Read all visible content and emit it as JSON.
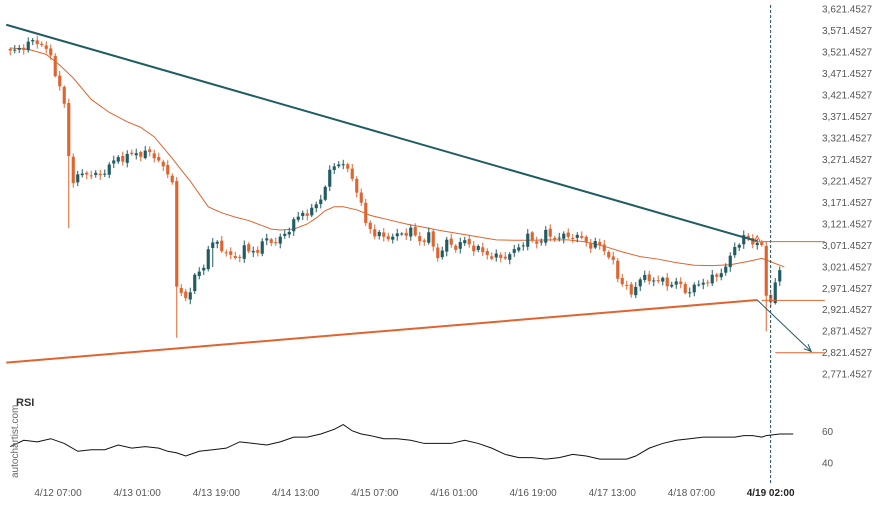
{
  "chart_data": {
    "type": "candlestick",
    "watermark": "autochartist.com",
    "colors": {
      "candle_up": "#1f5c63",
      "candle_down": "#e0642f",
      "moving_average": "#e0642f",
      "resistance_line": "#1f5c63",
      "support_line": "#e0642f",
      "forecast_arrow": "#1f5c63",
      "rsi_line": "#111111",
      "axis_text": "#555555"
    },
    "price_axis": {
      "ylim": [
        2745,
        3630
      ],
      "tick_labels": [
        "3,621.4527",
        "3,571.4527",
        "3,521.4527",
        "3,471.4527",
        "3,421.4527",
        "3,371.4527",
        "3,321.4527",
        "3,271.4527",
        "3,221.4527",
        "3,171.4527",
        "3,121.4527",
        "3,071.4527",
        "3,021.4527",
        "2,971.4527",
        "2,921.4527",
        "2,871.4527",
        "2,821.4527",
        "2,771.4527"
      ],
      "tick_values": [
        3621.4527,
        3571.4527,
        3521.4527,
        3471.4527,
        3421.4527,
        3371.4527,
        3321.4527,
        3271.4527,
        3221.4527,
        3171.4527,
        3121.4527,
        3071.4527,
        3021.4527,
        2971.4527,
        2921.4527,
        2871.4527,
        2821.4527,
        2771.4527
      ]
    },
    "time_axis": {
      "labels": [
        "4/12 07:00",
        "4/13 01:00",
        "4/13 19:00",
        "4/14 13:00",
        "4/15 07:00",
        "4/16 01:00",
        "4/16 19:00",
        "4/17 13:00",
        "4/18 07:00",
        "4/19 02:00"
      ],
      "positions": [
        5,
        23,
        41,
        59,
        77,
        95,
        113,
        131,
        149,
        167
      ],
      "highlight": "4/19 02:00",
      "total_bars": 176
    },
    "series": [
      {
        "name": "price",
        "kind": "candles",
        "close_anchors": [
          [
            0,
            3520
          ],
          [
            2,
            3528
          ],
          [
            5,
            3545
          ],
          [
            7,
            3540
          ],
          [
            9,
            3508
          ],
          [
            11,
            3438
          ],
          [
            12,
            3398
          ],
          [
            13,
            3275
          ],
          [
            14,
            3225
          ],
          [
            16,
            3235
          ],
          [
            18,
            3238
          ],
          [
            20,
            3230
          ],
          [
            22,
            3258
          ],
          [
            24,
            3272
          ],
          [
            28,
            3284
          ],
          [
            31,
            3285
          ],
          [
            33,
            3270
          ],
          [
            34,
            3250
          ],
          [
            35,
            3232
          ],
          [
            36,
            3226
          ],
          [
            37,
            2970
          ],
          [
            39,
            2945
          ],
          [
            41,
            2995
          ],
          [
            43,
            3020
          ],
          [
            44,
            3066
          ],
          [
            46,
            3076
          ],
          [
            48,
            3052
          ],
          [
            50,
            3038
          ],
          [
            52,
            3064
          ],
          [
            53,
            3055
          ],
          [
            55,
            3060
          ],
          [
            57,
            3085
          ],
          [
            59,
            3077
          ],
          [
            61,
            3095
          ],
          [
            63,
            3126
          ],
          [
            65,
            3145
          ],
          [
            67,
            3150
          ],
          [
            69,
            3180
          ],
          [
            71,
            3240
          ],
          [
            73,
            3266
          ],
          [
            75,
            3246
          ],
          [
            77,
            3202
          ],
          [
            79,
            3122
          ],
          [
            81,
            3097
          ],
          [
            83,
            3090
          ],
          [
            85,
            3090
          ],
          [
            87,
            3097
          ],
          [
            89,
            3105
          ],
          [
            91,
            3080
          ],
          [
            93,
            3092
          ],
          [
            95,
            3044
          ],
          [
            97,
            3077
          ],
          [
            99,
            3067
          ],
          [
            101,
            3080
          ],
          [
            103,
            3065
          ],
          [
            105,
            3055
          ],
          [
            107,
            3044
          ],
          [
            109,
            3042
          ],
          [
            111,
            3048
          ],
          [
            113,
            3066
          ],
          [
            115,
            3090
          ],
          [
            117,
            3075
          ],
          [
            119,
            3097
          ],
          [
            121,
            3088
          ],
          [
            123,
            3091
          ],
          [
            125,
            3092
          ],
          [
            127,
            3086
          ],
          [
            129,
            3070
          ],
          [
            131,
            3072
          ],
          [
            133,
            3046
          ],
          [
            134,
            3028
          ],
          [
            135,
            2995
          ],
          [
            137,
            2975
          ],
          [
            138,
            2952
          ],
          [
            140,
            2998
          ],
          [
            142,
            2988
          ],
          [
            144,
            2992
          ],
          [
            146,
            2978
          ],
          [
            148,
            2986
          ],
          [
            150,
            2962
          ],
          [
            152,
            2972
          ],
          [
            154,
            2985
          ],
          [
            156,
            2992
          ],
          [
            158,
            3008
          ],
          [
            160,
            3038
          ],
          [
            161,
            3070
          ],
          [
            162,
            3076
          ],
          [
            163,
            3090
          ],
          [
            165,
            3075
          ],
          [
            166,
            3082
          ],
          [
            167,
            3062
          ],
          [
            168,
            2955
          ],
          [
            169,
            2940
          ],
          [
            170,
            2988
          ],
          [
            171,
            3003
          ]
        ]
      },
      {
        "name": "moving average",
        "kind": "line",
        "points": [
          [
            0,
            3530
          ],
          [
            4,
            3527
          ],
          [
            8,
            3515
          ],
          [
            11,
            3490
          ],
          [
            14,
            3460
          ],
          [
            18,
            3410
          ],
          [
            22,
            3380
          ],
          [
            26,
            3358
          ],
          [
            29,
            3345
          ],
          [
            32,
            3323
          ],
          [
            34,
            3298
          ],
          [
            36,
            3273
          ],
          [
            38,
            3246
          ],
          [
            40,
            3220
          ],
          [
            42,
            3190
          ],
          [
            44,
            3160
          ],
          [
            47,
            3146
          ],
          [
            50,
            3136
          ],
          [
            53,
            3128
          ],
          [
            56,
            3116
          ],
          [
            58,
            3108
          ],
          [
            60,
            3106
          ],
          [
            63,
            3108
          ],
          [
            66,
            3120
          ],
          [
            68,
            3134
          ],
          [
            70,
            3151
          ],
          [
            72,
            3160
          ],
          [
            74,
            3160
          ],
          [
            77,
            3153
          ],
          [
            80,
            3140
          ],
          [
            84,
            3130
          ],
          [
            88,
            3120
          ],
          [
            92,
            3112
          ],
          [
            96,
            3104
          ],
          [
            100,
            3097
          ],
          [
            104,
            3090
          ],
          [
            108,
            3083
          ],
          [
            112,
            3082
          ],
          [
            116,
            3082
          ],
          [
            120,
            3083
          ],
          [
            124,
            3083
          ],
          [
            128,
            3078
          ],
          [
            132,
            3068
          ],
          [
            136,
            3055
          ],
          [
            140,
            3044
          ],
          [
            144,
            3038
          ],
          [
            148,
            3030
          ],
          [
            152,
            3024
          ],
          [
            156,
            3023
          ],
          [
            160,
            3025
          ],
          [
            164,
            3033
          ],
          [
            167,
            3040
          ],
          [
            169,
            3032
          ],
          [
            171,
            3024
          ],
          [
            172,
            3020
          ]
        ]
      },
      {
        "name": "RSI",
        "kind": "line",
        "ylim": [
          30,
          72
        ],
        "tick_labels": [
          "60",
          "40"
        ],
        "tick_values": [
          60,
          40
        ],
        "points": [
          [
            0,
            50
          ],
          [
            3,
            54
          ],
          [
            6,
            53
          ],
          [
            9,
            55
          ],
          [
            12,
            52
          ],
          [
            15,
            47
          ],
          [
            18,
            48
          ],
          [
            21,
            48
          ],
          [
            24,
            51
          ],
          [
            27,
            49
          ],
          [
            30,
            50
          ],
          [
            33,
            49
          ],
          [
            35,
            47
          ],
          [
            37,
            46
          ],
          [
            39,
            44
          ],
          [
            42,
            47
          ],
          [
            45,
            48
          ],
          [
            48,
            49
          ],
          [
            51,
            53
          ],
          [
            54,
            52
          ],
          [
            57,
            51
          ],
          [
            60,
            53
          ],
          [
            63,
            56
          ],
          [
            66,
            56
          ],
          [
            69,
            58
          ],
          [
            72,
            61
          ],
          [
            74,
            64
          ],
          [
            76,
            60
          ],
          [
            78,
            58
          ],
          [
            80,
            57
          ],
          [
            83,
            55
          ],
          [
            86,
            55
          ],
          [
            89,
            54
          ],
          [
            92,
            52
          ],
          [
            95,
            52
          ],
          [
            98,
            52
          ],
          [
            101,
            54
          ],
          [
            104,
            52
          ],
          [
            107,
            49
          ],
          [
            110,
            45
          ],
          [
            113,
            43
          ],
          [
            116,
            43
          ],
          [
            119,
            42
          ],
          [
            122,
            43
          ],
          [
            125,
            45
          ],
          [
            128,
            44
          ],
          [
            131,
            42
          ],
          [
            134,
            42
          ],
          [
            137,
            42
          ],
          [
            139,
            44
          ],
          [
            142,
            49
          ],
          [
            145,
            52
          ],
          [
            148,
            54
          ],
          [
            151,
            55
          ],
          [
            154,
            56
          ],
          [
            157,
            56
          ],
          [
            159,
            56
          ],
          [
            161,
            56
          ],
          [
            163,
            57
          ],
          [
            165,
            57
          ],
          [
            167,
            56
          ],
          [
            168,
            57
          ],
          [
            171,
            58
          ],
          [
            174,
            58
          ]
        ]
      }
    ],
    "pattern": {
      "resistance_line": [
        [
          0,
          3584
        ],
        [
          166,
          3080
        ]
      ],
      "support_line": [
        [
          0,
          2797
        ],
        [
          166,
          2943
        ]
      ],
      "breakout_bar": 166,
      "forecast_arrow": [
        [
          166,
          2943
        ],
        [
          178,
          2823
        ]
      ],
      "levels": [
        {
          "price": 3079,
          "from_bar": 167,
          "to_bar": 181
        },
        {
          "price": 2942,
          "from_bar": 167,
          "to_bar": 181
        },
        {
          "price": 2820,
          "from_bar": 170,
          "to_bar": 181
        }
      ]
    }
  }
}
